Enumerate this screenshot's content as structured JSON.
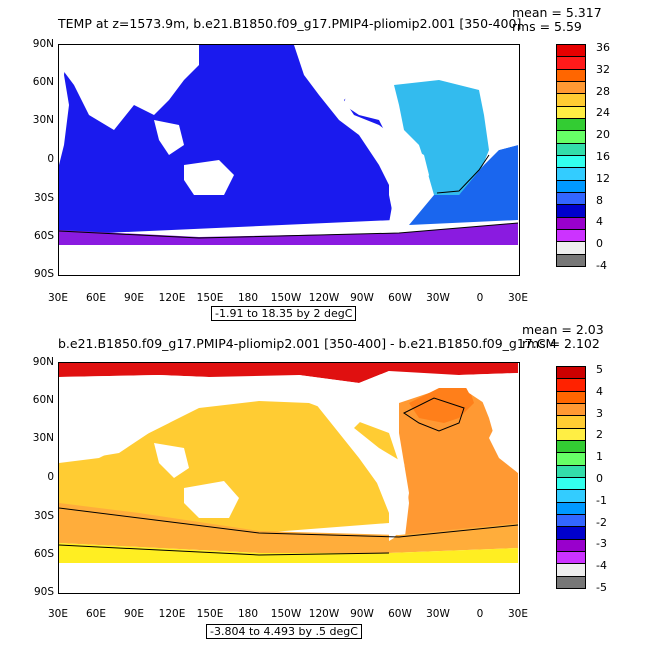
{
  "panel1": {
    "title": "TEMP at z=1573.9m, b.e21.B1850.f09_g17.PMIP4-pliomip2.001 [350-400]",
    "mean": "mean = 5.317",
    "rms": "rms = 5.59",
    "contour_info": "-1.91 to 18.35 by 2 degC",
    "y_ticks": [
      "90N",
      "60N",
      "30N",
      "0",
      "30S",
      "60S",
      "90S"
    ],
    "x_ticks": [
      "30E",
      "60E",
      "90E",
      "120E",
      "150E",
      "180",
      "150W",
      "120W",
      "90W",
      "60W",
      "30W",
      "0",
      "30E"
    ],
    "colorbar": {
      "labels": [
        "36",
        "32",
        "28",
        "24",
        "20",
        "16",
        "12",
        "8",
        "4",
        "0",
        "-4"
      ],
      "colors": [
        "#e60000",
        "#ff1a1a",
        "#ff6600",
        "#ff9933",
        "#ffcc33",
        "#ffee44",
        "#33cc33",
        "#66ff66",
        "#33ddaa",
        "#33ffee",
        "#33ccff",
        "#0099ff",
        "#3366ff",
        "#0000cc",
        "#9900cc",
        "#cc33ff",
        "#eeeeee",
        "#777777"
      ]
    }
  },
  "panel2": {
    "title": "b.e21.B1850.f09_g17.PMIP4-pliomip2.001 [350-400] - b.e21.B1850.f09_g17.CM",
    "mean": "mean = 2.03",
    "rms": "rms = 2.102",
    "contour_info": "-3.804 to 4.493 by .5 degC",
    "y_ticks": [
      "90N",
      "60N",
      "30N",
      "0",
      "30S",
      "60S",
      "90S"
    ],
    "x_ticks": [
      "30E",
      "60E",
      "90E",
      "120E",
      "150E",
      "180",
      "150W",
      "120W",
      "90W",
      "60W",
      "30W",
      "0",
      "30E"
    ],
    "colorbar": {
      "labels": [
        "5",
        "4",
        "3",
        "2",
        "1",
        "0",
        "-1",
        "-2",
        "-3",
        "-4",
        "-5"
      ],
      "colors": [
        "#cc0000",
        "#ff2200",
        "#ff6600",
        "#ff9933",
        "#ffcc33",
        "#ffee44",
        "#33cc33",
        "#66ff66",
        "#33ddaa",
        "#33ffee",
        "#33ccff",
        "#0099ff",
        "#3366ff",
        "#0000cc",
        "#9900cc",
        "#cc33ff",
        "#eeeeee",
        "#777777"
      ]
    }
  }
}
